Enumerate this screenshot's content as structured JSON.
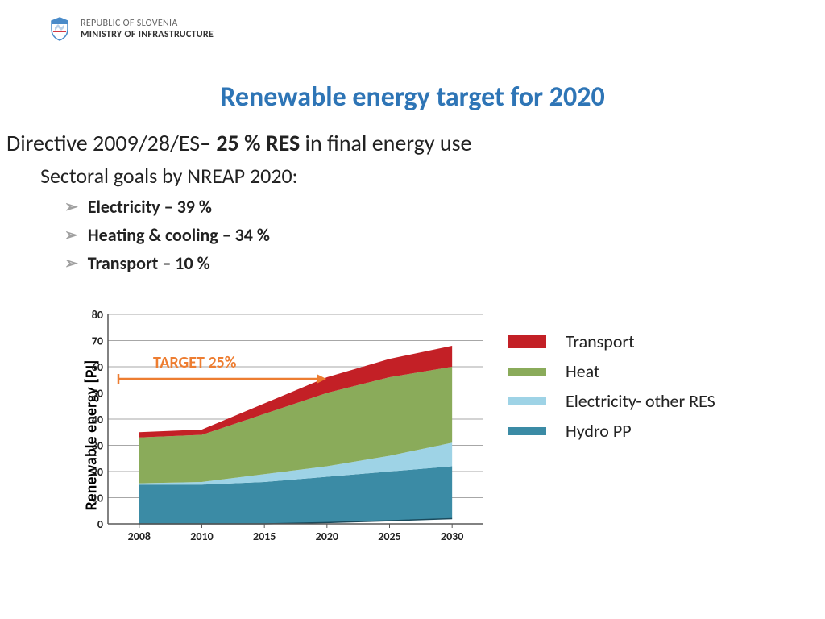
{
  "header": {
    "line1": "REPUBLIC OF SLOVENIA",
    "line2": "MINISTRY OF INFRASTRUCTURE",
    "shield_colors": {
      "top": "#4a8bc9",
      "body": "#ffffff",
      "border": "#4a8bc9",
      "accent": "#d43842"
    }
  },
  "title": "Renewable energy target for 2020",
  "title_color": "#2e75b6",
  "directive": {
    "prefix": "Directive 2009/28/ES",
    "bold": "– 25 % RES",
    "suffix": " in final energy use"
  },
  "sectoral": "Sectoral goals by NREAP 2020:",
  "goals": [
    "Electricity – 39 %",
    "Heating & cooling – 34 %",
    "Transport – 10 %"
  ],
  "chart": {
    "type": "stacked-area",
    "ylabel": "Renewable energy [PJ]",
    "ylim": [
      0,
      80
    ],
    "ytick_step": 10,
    "xcategories": [
      "2008",
      "2010",
      "2015",
      "2020",
      "2025",
      "2030"
    ],
    "series": [
      {
        "name": "Hydro PP",
        "color": "#3b8ba5",
        "values": [
          15,
          15,
          16,
          18,
          20,
          22
        ],
        "baseline": [
          0,
          0,
          0,
          0.5,
          1.2,
          2
        ]
      },
      {
        "name": "Electricity- other RES",
        "color": "#9ed3e6",
        "values": [
          15.5,
          16,
          19,
          22,
          26,
          31
        ]
      },
      {
        "name": "Heat",
        "color": "#8aab5a",
        "values": [
          33,
          34,
          42,
          50,
          56,
          60
        ]
      },
      {
        "name": "Transport",
        "color": "#c32026",
        "values": [
          35,
          36,
          46,
          56,
          63,
          68
        ]
      }
    ],
    "grid_color": "#8a8a8a",
    "axis_color": "#595959",
    "tick_font_size": 14,
    "tick_font_weight": "bold",
    "plot_background": "#ffffff",
    "target_label": "TARGET 25%",
    "target_color": "#ed7d31",
    "target_y_value": 55
  },
  "legend": {
    "items": [
      {
        "label": "Transport",
        "color": "#c32026",
        "thick": true
      },
      {
        "label": "Heat",
        "color": "#8aab5a",
        "thick": false
      },
      {
        "label": "Electricity- other RES",
        "color": "#9ed3e6",
        "thick": false
      },
      {
        "label": "Hydro PP",
        "color": "#3b8ba5",
        "thick": false
      }
    ]
  }
}
